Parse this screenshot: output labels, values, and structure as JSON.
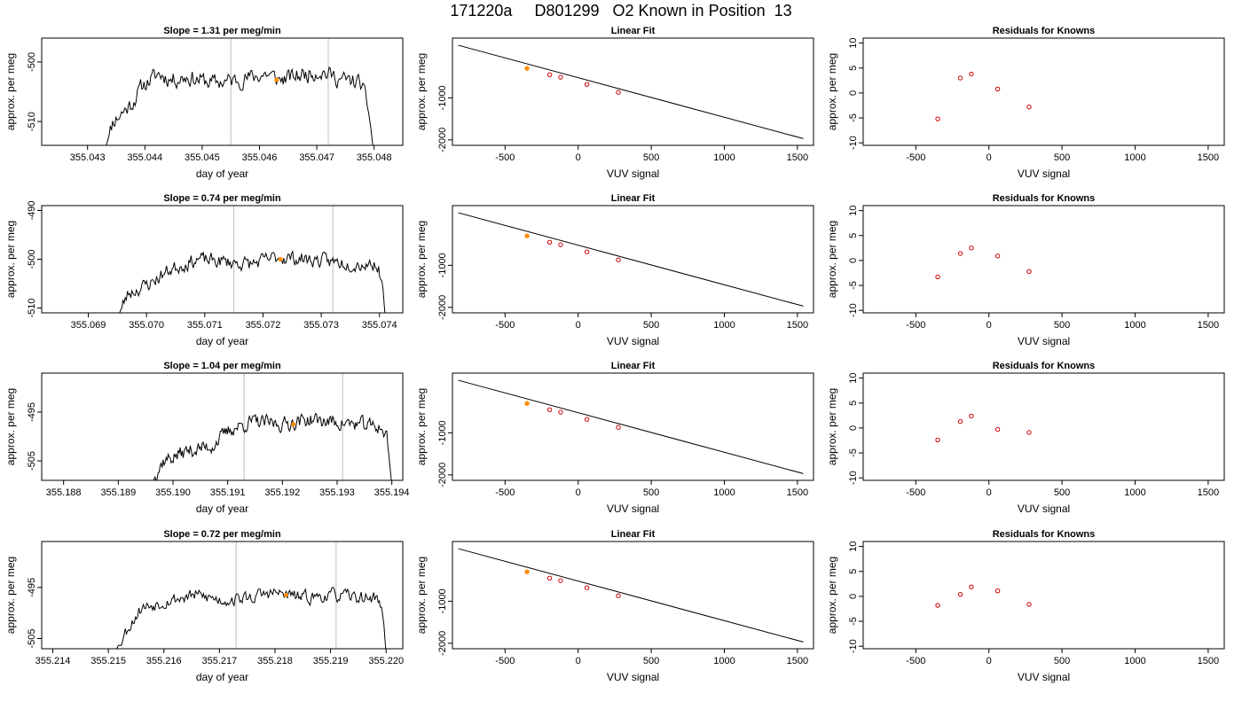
{
  "figure_title": "171220a     D801299   O2 Known in Position  13",
  "chart_data": [
    {
      "type": "line",
      "row": 1,
      "col": 1,
      "title": "Slope =  1.31  per meg/min",
      "xlabel": "day of year",
      "ylabel": "approx. per meg",
      "xlim": [
        355.0422,
        355.0485
      ],
      "ylim": [
        -514,
        -496
      ],
      "xticks": [
        355.043,
        355.044,
        355.045,
        355.046,
        355.047,
        355.048
      ],
      "xtick_labels": [
        "355.043",
        "355.044",
        "355.045",
        "355.046",
        "355.047",
        "355.048"
      ],
      "yticks": [
        -510,
        -500
      ],
      "ytick_labels": [
        "-510",
        "-500"
      ],
      "series_x_range": [
        355.0433,
        355.048
      ],
      "series_shape": [
        [
          0,
          -515
        ],
        [
          0.03,
          -510
        ],
        [
          0.1,
          -507
        ],
        [
          0.14,
          -504
        ],
        [
          0.2,
          -502
        ],
        [
          0.25,
          -503
        ],
        [
          0.3,
          -502.5
        ],
        [
          0.4,
          -503.5
        ],
        [
          0.5,
          -503
        ],
        [
          0.6,
          -502
        ],
        [
          0.65,
          -503
        ],
        [
          0.7,
          -502.5
        ],
        [
          0.8,
          -501.5
        ],
        [
          0.88,
          -503
        ],
        [
          0.95,
          -503.5
        ],
        [
          0.98,
          -508
        ],
        [
          1.0,
          -516
        ]
      ],
      "series_noise": 2.2,
      "series_seed": 11,
      "vlines": [
        355.0455,
        355.0472
      ],
      "marker": [
        355.0463,
        -503
      ]
    },
    {
      "type": "line",
      "row": 1,
      "col": 2,
      "title": "Linear Fit",
      "xlabel": "VUV signal",
      "ylabel": "approx. per meg",
      "xlim": [
        -860,
        1610
      ],
      "ylim": [
        -2130,
        420
      ],
      "xticks": [
        -500,
        0,
        500,
        1000,
        1500
      ],
      "xtick_labels": [
        "-500",
        "0",
        "500",
        "1000",
        "1500"
      ],
      "yticks": [
        -2000,
        -1000
      ],
      "ytick_labels": [
        "-2000",
        "-1000"
      ],
      "fit_line": [
        [
          -820,
          250
        ],
        [
          1540,
          -1970
        ]
      ],
      "points_x": [
        -350,
        -195,
        -120,
        60,
        275
      ],
      "points_y": [
        -300,
        -450,
        -510,
        -680,
        -870
      ],
      "highlight_index": 0
    },
    {
      "type": "scatter",
      "row": 1,
      "col": 3,
      "title": "Residuals for Knowns",
      "xlabel": "VUV signal",
      "ylabel": "approx. per meg",
      "xlim": [
        -860,
        1610
      ],
      "ylim": [
        -10.5,
        11
      ],
      "xticks": [
        -500,
        0,
        500,
        1000,
        1500
      ],
      "xtick_labels": [
        "-500",
        "0",
        "500",
        "1000",
        "1500"
      ],
      "yticks": [
        -10,
        -5,
        0,
        5,
        10
      ],
      "ytick_labels": [
        "-10",
        "-5",
        "0",
        "5",
        "10"
      ],
      "x": [
        -350,
        -195,
        -120,
        60,
        275
      ],
      "y": [
        -5.2,
        3.0,
        3.8,
        0.8,
        -2.8
      ]
    },
    {
      "type": "line",
      "row": 2,
      "col": 1,
      "title": "Slope =  0.74  per meg/min",
      "xlabel": "day of year",
      "ylabel": "approx. per meg",
      "xlim": [
        355.0682,
        355.0744
      ],
      "ylim": [
        -511,
        -489
      ],
      "xticks": [
        355.069,
        355.07,
        355.071,
        355.072,
        355.073,
        355.074
      ],
      "xtick_labels": [
        "355.069",
        "355.070",
        "355.071",
        "355.072",
        "355.073",
        "355.074"
      ],
      "yticks": [
        -510,
        -500,
        -490
      ],
      "ytick_labels": [
        "-510",
        "-500",
        "-490"
      ],
      "series_x_range": [
        355.0695,
        355.0741
      ],
      "series_shape": [
        [
          0,
          -512
        ],
        [
          0.04,
          -507
        ],
        [
          0.12,
          -505
        ],
        [
          0.2,
          -502
        ],
        [
          0.3,
          -500
        ],
        [
          0.4,
          -500.5
        ],
        [
          0.5,
          -501
        ],
        [
          0.6,
          -499.5
        ],
        [
          0.7,
          -500
        ],
        [
          0.8,
          -500.5
        ],
        [
          0.9,
          -501
        ],
        [
          0.97,
          -501
        ],
        [
          0.99,
          -505
        ],
        [
          1.0,
          -512
        ]
      ],
      "series_noise": 2.3,
      "series_seed": 23,
      "vlines": [
        355.0715,
        355.0732
      ],
      "marker": [
        355.0723,
        -500
      ]
    },
    {
      "type": "line",
      "row": 2,
      "col": 2,
      "title": "Linear Fit",
      "xlabel": "VUV signal",
      "ylabel": "approx. per meg",
      "xlim": [
        -860,
        1610
      ],
      "ylim": [
        -2130,
        420
      ],
      "xticks": [
        -500,
        0,
        500,
        1000,
        1500
      ],
      "xtick_labels": [
        "-500",
        "0",
        "500",
        "1000",
        "1500"
      ],
      "yticks": [
        -2000,
        -1000
      ],
      "ytick_labels": [
        "-2000",
        "-1000"
      ],
      "fit_line": [
        [
          -820,
          250
        ],
        [
          1540,
          -1970
        ]
      ],
      "points_x": [
        -350,
        -195,
        -120,
        60,
        275
      ],
      "points_y": [
        -300,
        -450,
        -510,
        -680,
        -870
      ],
      "highlight_index": 0
    },
    {
      "type": "scatter",
      "row": 2,
      "col": 3,
      "title": "Residuals for Knowns",
      "xlabel": "VUV signal",
      "ylabel": "approx. per meg",
      "xlim": [
        -860,
        1610
      ],
      "ylim": [
        -10.5,
        11
      ],
      "xticks": [
        -500,
        0,
        500,
        1000,
        1500
      ],
      "xtick_labels": [
        "-500",
        "0",
        "500",
        "1000",
        "1500"
      ],
      "yticks": [
        -10,
        -5,
        0,
        5,
        10
      ],
      "ytick_labels": [
        "-10",
        "-5",
        "0",
        "5",
        "10"
      ],
      "x": [
        -350,
        -195,
        -120,
        60,
        275
      ],
      "y": [
        -3.3,
        1.4,
        2.5,
        0.9,
        -2.2
      ]
    },
    {
      "type": "line",
      "row": 3,
      "col": 1,
      "title": "Slope =  1.04  per meg/min",
      "xlabel": "day of year",
      "ylabel": "approx. per meg",
      "xlim": [
        355.1876,
        355.1942
      ],
      "ylim": [
        -509,
        -487
      ],
      "xticks": [
        355.188,
        355.189,
        355.19,
        355.191,
        355.192,
        355.193,
        355.194
      ],
      "xtick_labels": [
        "355.188",
        "355.189",
        "355.190",
        "355.191",
        "355.192",
        "355.193",
        "355.194"
      ],
      "yticks": [
        -505,
        -495
      ],
      "ytick_labels": [
        "-505",
        "-495"
      ],
      "series_x_range": [
        355.1896,
        355.194
      ],
      "series_shape": [
        [
          0,
          -510
        ],
        [
          0.05,
          -505
        ],
        [
          0.15,
          -503
        ],
        [
          0.25,
          -502
        ],
        [
          0.33,
          -498.5
        ],
        [
          0.42,
          -497
        ],
        [
          0.55,
          -497.5
        ],
        [
          0.65,
          -496.5
        ],
        [
          0.75,
          -497
        ],
        [
          0.85,
          -497.5
        ],
        [
          0.95,
          -498
        ],
        [
          0.98,
          -500
        ],
        [
          1.0,
          -510
        ]
      ],
      "series_noise": 2.4,
      "series_seed": 37,
      "vlines": [
        355.1913,
        355.1931
      ],
      "marker": [
        355.1922,
        -497.5
      ]
    },
    {
      "type": "line",
      "row": 3,
      "col": 2,
      "title": "Linear Fit",
      "xlabel": "VUV signal",
      "ylabel": "approx. per meg",
      "xlim": [
        -860,
        1610
      ],
      "ylim": [
        -2130,
        420
      ],
      "xticks": [
        -500,
        0,
        500,
        1000,
        1500
      ],
      "xtick_labels": [
        "-500",
        "0",
        "500",
        "1000",
        "1500"
      ],
      "yticks": [
        -2000,
        -1000
      ],
      "ytick_labels": [
        "-2000",
        "-1000"
      ],
      "fit_line": [
        [
          -820,
          250
        ],
        [
          1540,
          -1970
        ]
      ],
      "points_x": [
        -350,
        -195,
        -120,
        60,
        275
      ],
      "points_y": [
        -300,
        -450,
        -510,
        -680,
        -870
      ],
      "highlight_index": 0
    },
    {
      "type": "scatter",
      "row": 3,
      "col": 3,
      "title": "Residuals for Knowns",
      "xlabel": "VUV signal",
      "ylabel": "approx. per meg",
      "xlim": [
        -860,
        1610
      ],
      "ylim": [
        -10.5,
        11
      ],
      "xticks": [
        -500,
        0,
        500,
        1000,
        1500
      ],
      "xtick_labels": [
        "-500",
        "0",
        "500",
        "1000",
        "1500"
      ],
      "yticks": [
        -10,
        -5,
        0,
        5,
        10
      ],
      "ytick_labels": [
        "-10",
        "-5",
        "0",
        "5",
        "10"
      ],
      "x": [
        -350,
        -195,
        -120,
        60,
        275
      ],
      "y": [
        -2.4,
        1.3,
        2.4,
        -0.3,
        -0.9
      ]
    },
    {
      "type": "line",
      "row": 4,
      "col": 1,
      "title": "Slope =  0.72  per meg/min",
      "xlabel": "day of year",
      "ylabel": "approx. per meg",
      "xlim": [
        355.2138,
        355.2203
      ],
      "ylim": [
        -507,
        -486
      ],
      "xticks": [
        355.214,
        355.215,
        355.216,
        355.217,
        355.218,
        355.219,
        355.22
      ],
      "xtick_labels": [
        "355.214",
        "355.215",
        "355.216",
        "355.217",
        "355.218",
        "355.219",
        "355.220"
      ],
      "yticks": [
        -505,
        -495
      ],
      "ytick_labels": [
        "-505",
        "-495"
      ],
      "series_x_range": [
        355.2151,
        355.22
      ],
      "series_shape": [
        [
          0,
          -508
        ],
        [
          0.05,
          -503
        ],
        [
          0.1,
          -499
        ],
        [
          0.2,
          -497.5
        ],
        [
          0.3,
          -496.5
        ],
        [
          0.4,
          -497.5
        ],
        [
          0.5,
          -497
        ],
        [
          0.58,
          -496
        ],
        [
          0.7,
          -497
        ],
        [
          0.8,
          -496.5
        ],
        [
          0.9,
          -497
        ],
        [
          0.97,
          -497
        ],
        [
          0.99,
          -501
        ],
        [
          1.0,
          -508
        ]
      ],
      "series_noise": 2.0,
      "series_seed": 53,
      "vlines": [
        355.2173,
        355.2191
      ],
      "marker": [
        355.2182,
        -496.5
      ]
    },
    {
      "type": "line",
      "row": 4,
      "col": 2,
      "title": "Linear Fit",
      "xlabel": "VUV signal",
      "ylabel": "approx. per meg",
      "xlim": [
        -860,
        1610
      ],
      "ylim": [
        -2130,
        420
      ],
      "xticks": [
        -500,
        0,
        500,
        1000,
        1500
      ],
      "xtick_labels": [
        "-500",
        "0",
        "500",
        "1000",
        "1500"
      ],
      "yticks": [
        -2000,
        -1000
      ],
      "ytick_labels": [
        "-2000",
        "-1000"
      ],
      "fit_line": [
        [
          -820,
          250
        ],
        [
          1540,
          -1970
        ]
      ],
      "points_x": [
        -350,
        -195,
        -120,
        60,
        275
      ],
      "points_y": [
        -300,
        -450,
        -510,
        -680,
        -870
      ],
      "highlight_index": 0
    },
    {
      "type": "scatter",
      "row": 4,
      "col": 3,
      "title": "Residuals for Knowns",
      "xlabel": "VUV signal",
      "ylabel": "approx. per meg",
      "xlim": [
        -860,
        1610
      ],
      "ylim": [
        -10.5,
        11
      ],
      "xticks": [
        -500,
        0,
        500,
        1000,
        1500
      ],
      "xtick_labels": [
        "-500",
        "0",
        "500",
        "1000",
        "1500"
      ],
      "yticks": [
        -10,
        -5,
        0,
        5,
        10
      ],
      "ytick_labels": [
        "-10",
        "-5",
        "0",
        "5",
        "10"
      ],
      "x": [
        -350,
        -195,
        -120,
        60,
        275
      ],
      "y": [
        -1.8,
        0.4,
        1.9,
        1.1,
        -1.6
      ]
    }
  ],
  "colors": {
    "trace": "#000000",
    "frame": "#000000",
    "vline": "#bebebe",
    "point": "#cc0000",
    "highlight": "#ff8c00"
  }
}
